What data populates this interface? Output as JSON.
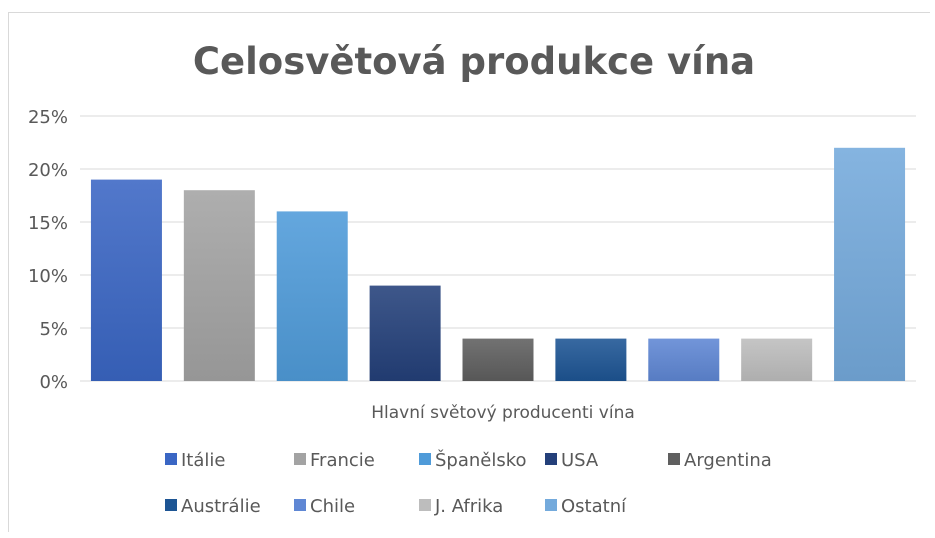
{
  "chart_data": {
    "type": "bar",
    "title": "Celosvětová produkce vína",
    "xlabel": "Hlavní světový producenti vína",
    "ylabel": "",
    "ylim": [
      0,
      25
    ],
    "yticks": [
      "0%",
      "5%",
      "10%",
      "15%",
      "20%",
      "25%"
    ],
    "ytick_values": [
      0,
      5,
      10,
      15,
      20,
      25
    ],
    "grid": true,
    "legend_position": "bottom",
    "categories": [
      "Itálie",
      "Francie",
      "Španělsko",
      "USA",
      "Argentina",
      "Austrálie",
      "Chile",
      "J. Afrika",
      "Ostatní"
    ],
    "values": [
      19,
      18,
      16,
      9,
      4,
      4,
      4,
      4,
      22
    ],
    "colors": [
      "#3a66c4",
      "#a3a3a3",
      "#4f9bd9",
      "#24407a",
      "#5f5f5f",
      "#1d5594",
      "#5f87d4",
      "#bdbdbd",
      "#74aadc"
    ]
  }
}
